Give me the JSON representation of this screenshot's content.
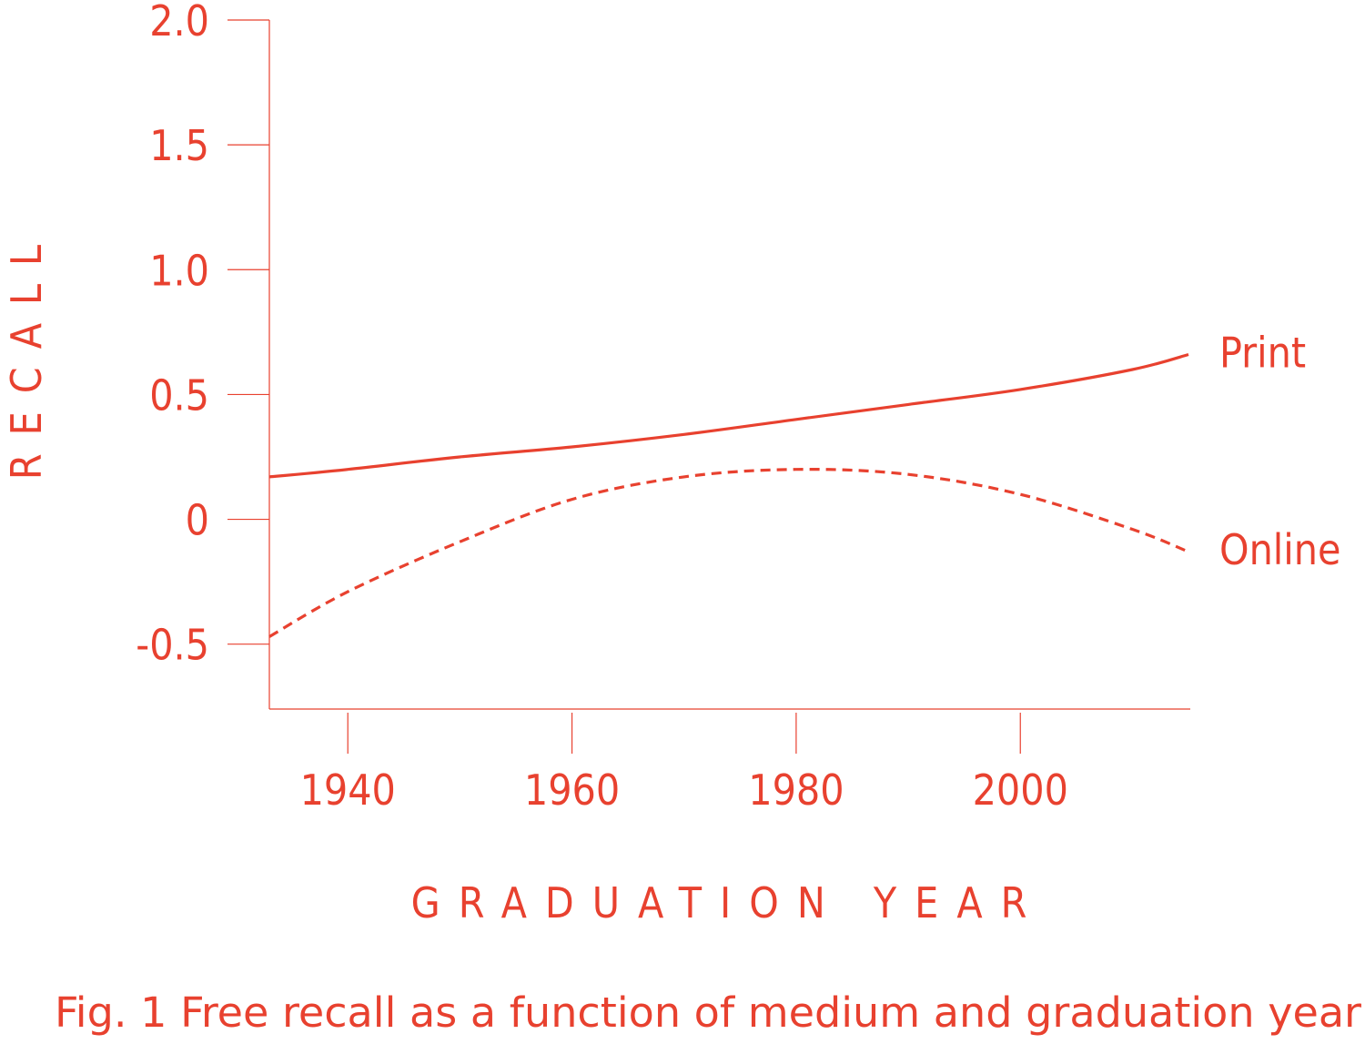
{
  "colors": {
    "accent": "#e8412f"
  },
  "figure": {
    "caption": "Fig. 1  Free recall as a function of medium and graduation year"
  },
  "chart_data": {
    "type": "line",
    "title": "",
    "xlabel": "GRADUATION YEAR",
    "ylabel": "RECALL",
    "xlim": [
      1933,
      2015
    ],
    "ylim": [
      -0.76,
      2.0
    ],
    "xticks": [
      1940,
      1960,
      1980,
      2000
    ],
    "xtick_labels": [
      "1940",
      "1960",
      "1980",
      "2000"
    ],
    "yticks": [
      2.0,
      1.5,
      1.0,
      0.5,
      0,
      -0.5
    ],
    "ytick_labels": [
      "2.0",
      "1.5",
      "1.0",
      "0.5",
      "0",
      "-0.5"
    ],
    "grid": false,
    "legend": "inline labels at right end of lines",
    "series": [
      {
        "name": "Print",
        "style": "solid",
        "x": [
          1933,
          1940,
          1950,
          1960,
          1970,
          1980,
          1990,
          2000,
          2010,
          2015
        ],
        "y": [
          0.17,
          0.2,
          0.25,
          0.29,
          0.34,
          0.4,
          0.46,
          0.52,
          0.6,
          0.66
        ]
      },
      {
        "name": "Online",
        "style": "dashed",
        "x": [
          1933,
          1940,
          1950,
          1960,
          1970,
          1980,
          1990,
          2000,
          2010,
          2015
        ],
        "y": [
          -0.47,
          -0.29,
          -0.09,
          0.08,
          0.17,
          0.2,
          0.18,
          0.1,
          -0.04,
          -0.13
        ]
      }
    ]
  }
}
